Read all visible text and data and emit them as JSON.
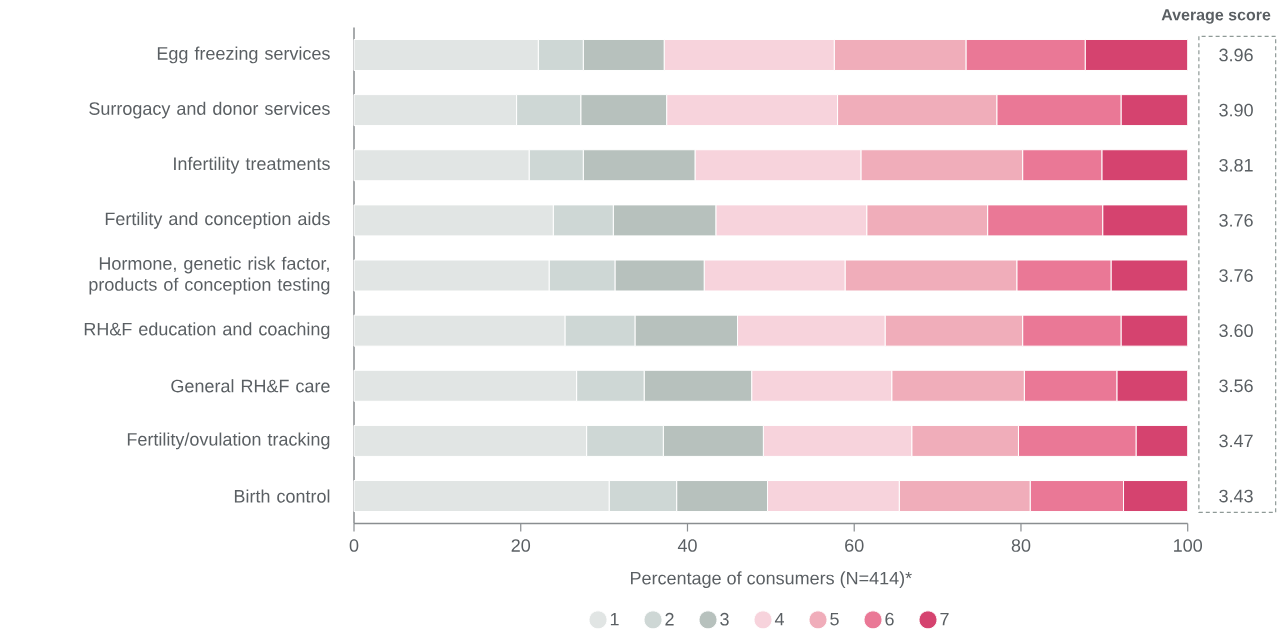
{
  "chart_data": {
    "type": "bar",
    "orientation": "horizontal",
    "stacked": true,
    "xlabel": "Percentage of consumers (N=414)*",
    "categories": [
      "Egg freezing services",
      "Surrogacy and donor services",
      "Infertility treatments",
      "Fertility and conception aids",
      "Hormone, genetic risk factor, products of conception testing",
      "RH&F education and coaching",
      "General RH&F care",
      "Fertility/ovulation tracking",
      "Birth control"
    ],
    "series": [
      {
        "name": "1",
        "color": "#e1e5e4",
        "values": [
          22.1,
          19.5,
          21.0,
          23.9,
          23.4,
          25.3,
          26.7,
          27.9,
          30.6
        ]
      },
      {
        "name": "2",
        "color": "#ced7d5",
        "values": [
          5.4,
          7.7,
          6.5,
          7.2,
          7.9,
          8.4,
          8.1,
          9.2,
          8.1
        ]
      },
      {
        "name": "3",
        "color": "#b7c1bd",
        "values": [
          9.7,
          10.3,
          13.4,
          12.3,
          10.7,
          12.3,
          12.9,
          12.0,
          10.9
        ]
      },
      {
        "name": "4",
        "color": "#f7d3dc",
        "values": [
          20.4,
          20.5,
          19.9,
          18.1,
          16.9,
          17.7,
          16.8,
          17.8,
          15.8
        ]
      },
      {
        "name": "5",
        "color": "#f0adba",
        "values": [
          15.8,
          19.1,
          19.4,
          14.5,
          20.6,
          16.5,
          15.9,
          12.8,
          15.7
        ]
      },
      {
        "name": "6",
        "color": "#ea7896",
        "values": [
          14.3,
          14.9,
          9.5,
          13.8,
          11.3,
          11.8,
          11.1,
          14.1,
          11.2
        ]
      },
      {
        "name": "7",
        "color": "#d5436f",
        "values": [
          12.3,
          8.0,
          10.3,
          10.2,
          9.2,
          8.0,
          8.5,
          6.2,
          7.7
        ]
      }
    ],
    "xlim": [
      0,
      100
    ],
    "xticks": [
      0,
      20,
      40,
      60,
      80,
      100
    ],
    "legend": "bottom",
    "grid": false,
    "annotations": [
      "Average score",
      "3.96",
      "3.90",
      "3.81",
      "3.76",
      "3.76",
      "3.60",
      "3.56",
      "3.47",
      "3.43"
    ]
  }
}
